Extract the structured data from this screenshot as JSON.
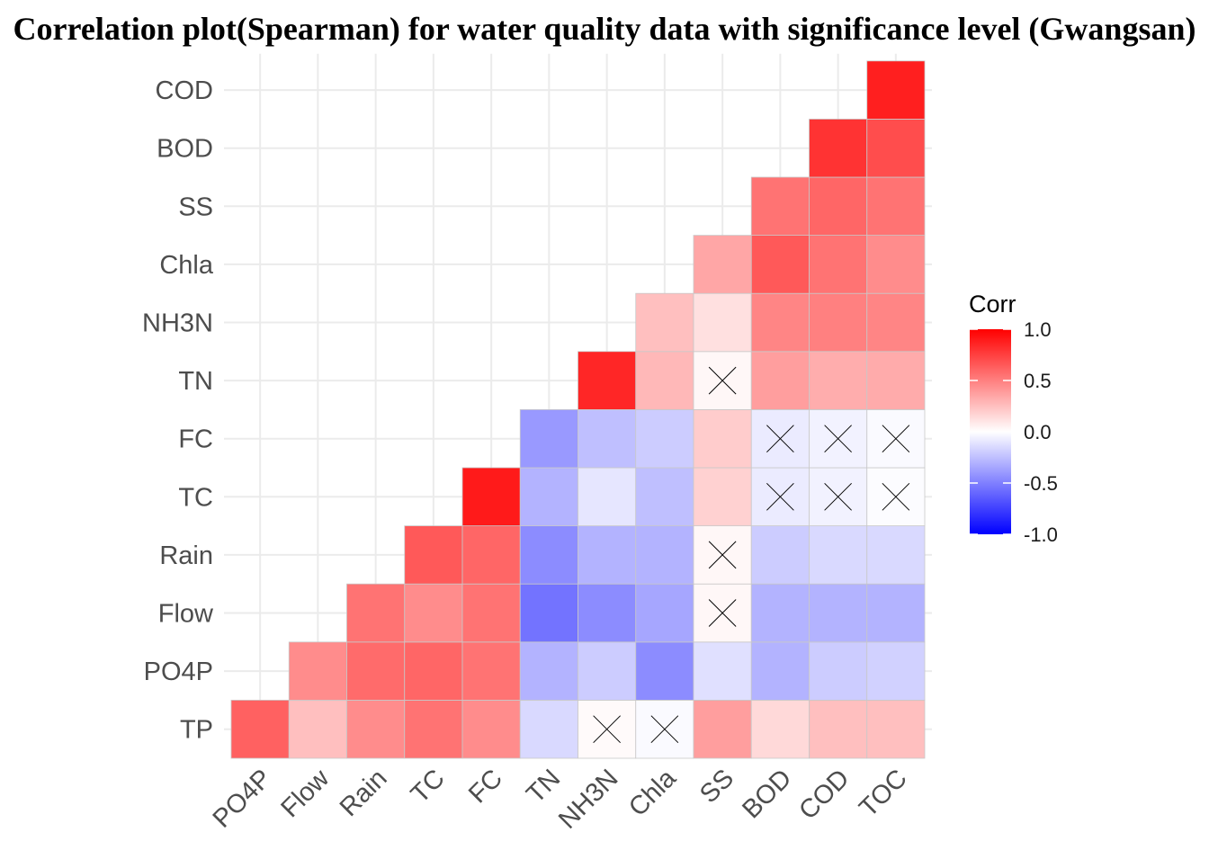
{
  "chart_data": {
    "type": "heatmap",
    "title": "Correlation plot(Spearman) for water quality data with significance level (Gwangsan)",
    "x_categories": [
      "PO4P",
      "Flow",
      "Rain",
      "TC",
      "FC",
      "TN",
      "NH3N",
      "Chla",
      "SS",
      "BOD",
      "COD",
      "TOC"
    ],
    "y_categories": [
      "TP",
      "PO4P",
      "Flow",
      "Rain",
      "TC",
      "FC",
      "TN",
      "NH3N",
      "Chla",
      "SS",
      "BOD",
      "COD"
    ],
    "cells": [
      {
        "x": "PO4P",
        "y": "TP",
        "value": 0.62,
        "insignificant": false
      },
      {
        "x": "Flow",
        "y": "TP",
        "value": 0.25,
        "insignificant": false
      },
      {
        "x": "Rain",
        "y": "TP",
        "value": 0.45,
        "insignificant": false
      },
      {
        "x": "TC",
        "y": "TP",
        "value": 0.55,
        "insignificant": false
      },
      {
        "x": "FC",
        "y": "TP",
        "value": 0.45,
        "insignificant": false
      },
      {
        "x": "TN",
        "y": "TP",
        "value": -0.15,
        "insignificant": false
      },
      {
        "x": "NH3N",
        "y": "TP",
        "value": 0.02,
        "insignificant": true
      },
      {
        "x": "Chla",
        "y": "TP",
        "value": -0.02,
        "insignificant": true
      },
      {
        "x": "SS",
        "y": "TP",
        "value": 0.38,
        "insignificant": false
      },
      {
        "x": "BOD",
        "y": "TP",
        "value": 0.15,
        "insignificant": false
      },
      {
        "x": "COD",
        "y": "TP",
        "value": 0.25,
        "insignificant": false
      },
      {
        "x": "TOC",
        "y": "TP",
        "value": 0.25,
        "insignificant": false
      },
      {
        "x": "Flow",
        "y": "PO4P",
        "value": 0.45,
        "insignificant": false
      },
      {
        "x": "Rain",
        "y": "PO4P",
        "value": 0.58,
        "insignificant": false
      },
      {
        "x": "TC",
        "y": "PO4P",
        "value": 0.6,
        "insignificant": false
      },
      {
        "x": "FC",
        "y": "PO4P",
        "value": 0.55,
        "insignificant": false
      },
      {
        "x": "TN",
        "y": "PO4P",
        "value": -0.3,
        "insignificant": false
      },
      {
        "x": "NH3N",
        "y": "PO4P",
        "value": -0.2,
        "insignificant": false
      },
      {
        "x": "Chla",
        "y": "PO4P",
        "value": -0.45,
        "insignificant": false
      },
      {
        "x": "SS",
        "y": "PO4P",
        "value": -0.12,
        "insignificant": false
      },
      {
        "x": "BOD",
        "y": "PO4P",
        "value": -0.3,
        "insignificant": false
      },
      {
        "x": "COD",
        "y": "PO4P",
        "value": -0.2,
        "insignificant": false
      },
      {
        "x": "TOC",
        "y": "PO4P",
        "value": -0.18,
        "insignificant": false
      },
      {
        "x": "Rain",
        "y": "Flow",
        "value": 0.55,
        "insignificant": false
      },
      {
        "x": "TC",
        "y": "Flow",
        "value": 0.45,
        "insignificant": false
      },
      {
        "x": "FC",
        "y": "Flow",
        "value": 0.55,
        "insignificant": false
      },
      {
        "x": "TN",
        "y": "Flow",
        "value": -0.55,
        "insignificant": false
      },
      {
        "x": "NH3N",
        "y": "Flow",
        "value": -0.45,
        "insignificant": false
      },
      {
        "x": "Chla",
        "y": "Flow",
        "value": -0.35,
        "insignificant": false
      },
      {
        "x": "SS",
        "y": "Flow",
        "value": 0.03,
        "insignificant": true
      },
      {
        "x": "BOD",
        "y": "Flow",
        "value": -0.3,
        "insignificant": false
      },
      {
        "x": "COD",
        "y": "Flow",
        "value": -0.3,
        "insignificant": false
      },
      {
        "x": "TOC",
        "y": "Flow",
        "value": -0.3,
        "insignificant": false
      },
      {
        "x": "TC",
        "y": "Rain",
        "value": 0.65,
        "insignificant": false
      },
      {
        "x": "FC",
        "y": "Rain",
        "value": 0.6,
        "insignificant": false
      },
      {
        "x": "TN",
        "y": "Rain",
        "value": -0.45,
        "insignificant": false
      },
      {
        "x": "NH3N",
        "y": "Rain",
        "value": -0.3,
        "insignificant": false
      },
      {
        "x": "Chla",
        "y": "Rain",
        "value": -0.3,
        "insignificant": false
      },
      {
        "x": "SS",
        "y": "Rain",
        "value": 0.03,
        "insignificant": true
      },
      {
        "x": "BOD",
        "y": "Rain",
        "value": -0.2,
        "insignificant": false
      },
      {
        "x": "COD",
        "y": "Rain",
        "value": -0.15,
        "insignificant": false
      },
      {
        "x": "TOC",
        "y": "Rain",
        "value": -0.15,
        "insignificant": false
      },
      {
        "x": "FC",
        "y": "TC",
        "value": 0.9,
        "insignificant": false
      },
      {
        "x": "TN",
        "y": "TC",
        "value": -0.3,
        "insignificant": false
      },
      {
        "x": "NH3N",
        "y": "TC",
        "value": -0.1,
        "insignificant": false
      },
      {
        "x": "Chla",
        "y": "TC",
        "value": -0.25,
        "insignificant": false
      },
      {
        "x": "SS",
        "y": "TC",
        "value": 0.18,
        "insignificant": false
      },
      {
        "x": "BOD",
        "y": "TC",
        "value": -0.08,
        "insignificant": true
      },
      {
        "x": "COD",
        "y": "TC",
        "value": -0.05,
        "insignificant": true
      },
      {
        "x": "TOC",
        "y": "TC",
        "value": -0.01,
        "insignificant": true
      },
      {
        "x": "TN",
        "y": "FC",
        "value": -0.4,
        "insignificant": false
      },
      {
        "x": "NH3N",
        "y": "FC",
        "value": -0.25,
        "insignificant": false
      },
      {
        "x": "Chla",
        "y": "FC",
        "value": -0.2,
        "insignificant": false
      },
      {
        "x": "SS",
        "y": "FC",
        "value": 0.2,
        "insignificant": false
      },
      {
        "x": "BOD",
        "y": "FC",
        "value": -0.08,
        "insignificant": true
      },
      {
        "x": "COD",
        "y": "FC",
        "value": -0.05,
        "insignificant": true
      },
      {
        "x": "TOC",
        "y": "FC",
        "value": -0.02,
        "insignificant": true
      },
      {
        "x": "NH3N",
        "y": "TN",
        "value": 0.85,
        "insignificant": false
      },
      {
        "x": "Chla",
        "y": "TN",
        "value": 0.28,
        "insignificant": false
      },
      {
        "x": "SS",
        "y": "TN",
        "value": 0.03,
        "insignificant": true
      },
      {
        "x": "BOD",
        "y": "TN",
        "value": 0.38,
        "insignificant": false
      },
      {
        "x": "COD",
        "y": "TN",
        "value": 0.32,
        "insignificant": false
      },
      {
        "x": "TOC",
        "y": "TN",
        "value": 0.33,
        "insignificant": false
      },
      {
        "x": "Chla",
        "y": "NH3N",
        "value": 0.25,
        "insignificant": false
      },
      {
        "x": "SS",
        "y": "NH3N",
        "value": 0.12,
        "insignificant": false
      },
      {
        "x": "BOD",
        "y": "NH3N",
        "value": 0.48,
        "insignificant": false
      },
      {
        "x": "COD",
        "y": "NH3N",
        "value": 0.5,
        "insignificant": false
      },
      {
        "x": "TOC",
        "y": "NH3N",
        "value": 0.48,
        "insignificant": false
      },
      {
        "x": "SS",
        "y": "Chla",
        "value": 0.35,
        "insignificant": false
      },
      {
        "x": "BOD",
        "y": "Chla",
        "value": 0.65,
        "insignificant": false
      },
      {
        "x": "COD",
        "y": "Chla",
        "value": 0.55,
        "insignificant": false
      },
      {
        "x": "TOC",
        "y": "Chla",
        "value": 0.45,
        "insignificant": false
      },
      {
        "x": "BOD",
        "y": "SS",
        "value": 0.55,
        "insignificant": false
      },
      {
        "x": "COD",
        "y": "SS",
        "value": 0.6,
        "insignificant": false
      },
      {
        "x": "TOC",
        "y": "SS",
        "value": 0.55,
        "insignificant": false
      },
      {
        "x": "COD",
        "y": "BOD",
        "value": 0.8,
        "insignificant": false
      },
      {
        "x": "TOC",
        "y": "BOD",
        "value": 0.7,
        "insignificant": false
      },
      {
        "x": "TOC",
        "y": "COD",
        "value": 0.88,
        "insignificant": false
      }
    ],
    "legend": {
      "title": "Corr",
      "placement": "right",
      "ticks": [
        1.0,
        0.5,
        0.0,
        -0.5,
        -1.0
      ],
      "tick_labels": [
        "1.0",
        "0.5",
        "0.0",
        "-0.5",
        "-1.0"
      ],
      "range": [
        -1,
        1
      ]
    },
    "colors": {
      "low": "#0000FF",
      "mid": "#FFFFFF",
      "high": "#FF0000",
      "grid": "#EBEBEB",
      "tile_border": "#C8C8C8",
      "insignificant_mark": "#000000"
    },
    "grid": true
  }
}
